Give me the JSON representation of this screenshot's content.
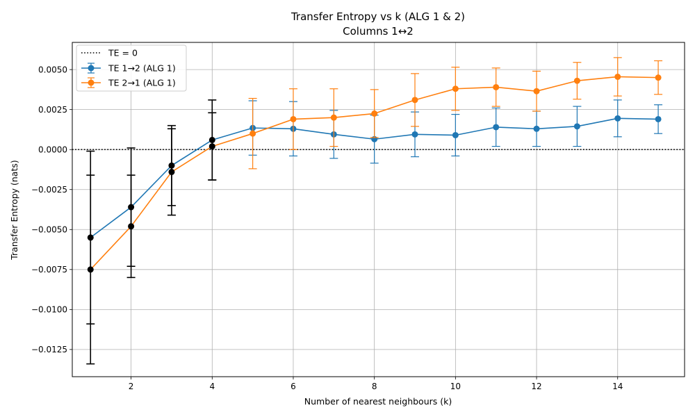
{
  "chart_data": {
    "type": "line",
    "title": "Transfer Entropy vs k (ALG 1 & 2)",
    "subtitle": "Columns 1↔2",
    "xlabel": "Number of nearest neighbours (k)",
    "ylabel": "Transfer Entropy (nats)",
    "xlim": [
      0.55,
      15.65
    ],
    "ylim": [
      -0.0142,
      0.0067
    ],
    "xticks": [
      2,
      4,
      6,
      8,
      10,
      12,
      14
    ],
    "xtick_labels": [
      "2",
      "4",
      "6",
      "8",
      "10",
      "12",
      "14"
    ],
    "yticks": [
      -0.0125,
      -0.01,
      -0.0075,
      -0.005,
      -0.0025,
      0.0,
      0.0025,
      0.005
    ],
    "ytick_labels": [
      "−0.0125",
      "−0.0100",
      "−0.0075",
      "−0.0050",
      "−0.0025",
      "0.0000",
      "0.0025",
      "0.0050"
    ],
    "grid": true,
    "legend_position": "top-left",
    "reference_line": {
      "name": "TE = 0",
      "y": 0.0,
      "color": "#000000",
      "style": "dotted"
    },
    "x": [
      1,
      2,
      3,
      4,
      5,
      6,
      7,
      8,
      9,
      10,
      11,
      12,
      13,
      14,
      15
    ],
    "series": [
      {
        "name": "TE 1→2 (ALG 1)",
        "color": "#1f77b4",
        "values": [
          -0.0055,
          -0.0036,
          -0.001,
          0.0006,
          0.00135,
          0.0013,
          0.00095,
          0.00065,
          0.00095,
          0.0009,
          0.0014,
          0.0013,
          0.00145,
          0.00195,
          0.0019
        ],
        "errors": [
          0.0054,
          0.0037,
          0.0025,
          0.0025,
          0.0017,
          0.0017,
          0.0015,
          0.0015,
          0.0014,
          0.0013,
          0.0012,
          0.0011,
          0.00125,
          0.00115,
          0.0009
        ],
        "highlight_color": "#000000",
        "highlight_k": [
          1,
          2,
          3,
          4
        ]
      },
      {
        "name": "TE 2→1 (ALG 1)",
        "color": "#ff7f0e",
        "values": [
          -0.0075,
          -0.0048,
          -0.0014,
          0.0002,
          0.001,
          0.0019,
          0.002,
          0.00225,
          0.0031,
          0.0038,
          0.0039,
          0.00365,
          0.0043,
          0.00455,
          0.0045
        ],
        "errors": [
          0.0059,
          0.0032,
          0.0027,
          0.0021,
          0.0022,
          0.0019,
          0.0018,
          0.0015,
          0.00165,
          0.00135,
          0.0012,
          0.00125,
          0.00115,
          0.0012,
          0.00105
        ],
        "highlight_color": "#000000",
        "highlight_k": [
          1,
          2,
          3,
          4
        ]
      }
    ]
  }
}
